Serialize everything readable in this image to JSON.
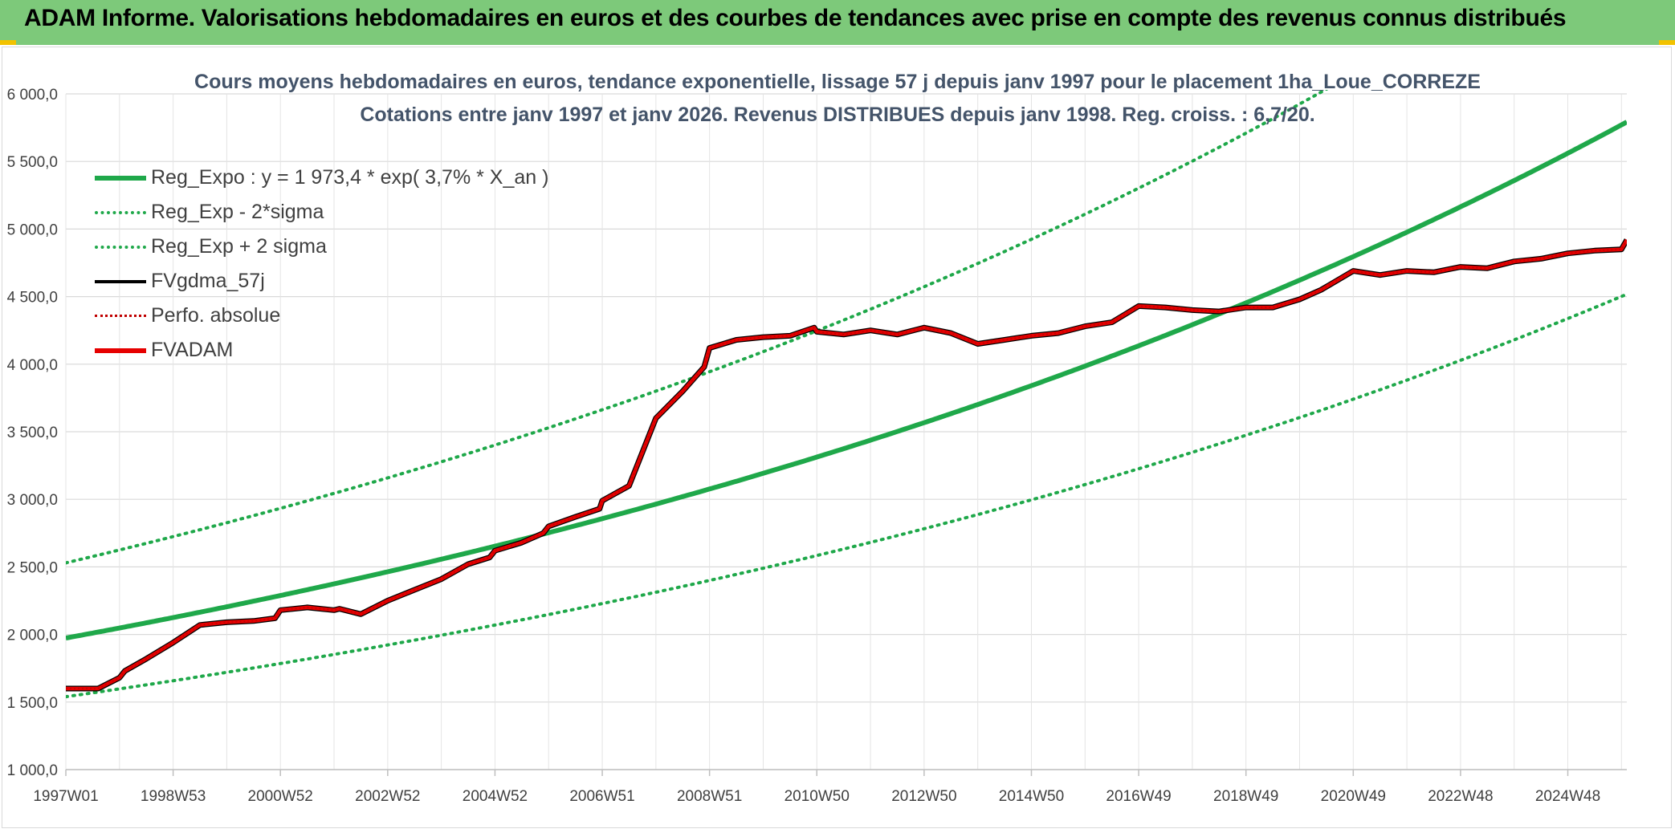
{
  "banner": {
    "title": "ADAM Informe. Valorisations hebdomadaires en euros et des courbes de tendances avec prise en compte des revenus connus distribués"
  },
  "colors": {
    "banner_bg": "#7dc97a",
    "reg_expo": "#1fa84a",
    "sigma": "#1fa84a",
    "fvgdma": "#000000",
    "perfo": "#c00000",
    "fvadam": "#e60000",
    "grid": "#d9d9d9",
    "text": "#404040"
  },
  "chart_data": {
    "type": "line",
    "title": "Cours moyens hebdomadaires en euros, tendance exponentielle, lissage 57 j depuis janv 1997 pour le placement 1ha_Loue_CORREZE",
    "subtitle": "Cotations entre janv 1997 et janv 2026. Revenus DISTRIBUES depuis janv 1998. Reg. croiss. : 6,7/20.",
    "xlabel": "",
    "ylabel": "",
    "xlim": [
      1997.0,
      2026.1
    ],
    "ylim": [
      1000,
      6000
    ],
    "y_ticks": [
      1000,
      1500,
      2000,
      2500,
      3000,
      3500,
      4000,
      4500,
      5000,
      5500,
      6000
    ],
    "y_tick_labels": [
      "1 000,0",
      "1 500,0",
      "2 000,0",
      "2 500,0",
      "3 000,0",
      "3 500,0",
      "4 000,0",
      "4 500,0",
      "5 000,0",
      "5 500,0",
      "6 000,0"
    ],
    "x_tick_labels": [
      "1997W01",
      "1998W53",
      "2000W52",
      "2002W52",
      "2004W52",
      "2006W51",
      "2008W51",
      "2010W50",
      "2012W50",
      "2014W50",
      "2016W49",
      "2018W49",
      "2020W49",
      "2022W48",
      "2024W48"
    ],
    "x_tick_positions": [
      1997.0,
      1999.0,
      2001.0,
      2003.0,
      2005.0,
      2007.0,
      2009.0,
      2011.0,
      2013.0,
      2015.0,
      2017.0,
      2019.0,
      2021.0,
      2023.0,
      2025.0
    ],
    "legend_position": "top-left",
    "grid": true,
    "regression": {
      "a": 1973.4,
      "rate": 0.037,
      "start_year": 1997.0,
      "end_year": 2026.1,
      "sigma_factor": 1.282
    },
    "series": [
      {
        "name": "Reg_Expo : y = 1 973,4 * exp( 3,7% *  X_an )",
        "style": "solid-thick",
        "kind": "reg"
      },
      {
        "name": "Reg_Exp - 2*sigma",
        "style": "dotted",
        "kind": "reg_low"
      },
      {
        "name": "Reg_Exp + 2 sigma",
        "style": "dotted",
        "kind": "reg_high"
      },
      {
        "name": "FVgdma_57j",
        "style": "solid",
        "kind": "data",
        "x": [
          1997.0,
          1997.6,
          1998.0,
          1998.1,
          1998.5,
          1999.0,
          1999.5,
          2000.0,
          2000.5,
          2000.9,
          2001.0,
          2001.5,
          2002.0,
          2002.1,
          2002.5,
          2003.0,
          2003.5,
          2004.0,
          2004.5,
          2004.9,
          2005.0,
          2005.5,
          2005.9,
          2006.0,
          2006.5,
          2006.95,
          2007.0,
          2007.5,
          2008.0,
          2008.5,
          2008.9,
          2009.0,
          2009.5,
          2010.0,
          2010.5,
          2010.95,
          2011.0,
          2011.5,
          2012.0,
          2012.5,
          2013.0,
          2013.5,
          2014.0,
          2014.5,
          2015.0,
          2015.5,
          2016.0,
          2016.5,
          2017.0,
          2017.5,
          2018.0,
          2018.5,
          2019.0,
          2019.5,
          2020.0,
          2020.4,
          2021.0,
          2021.5,
          2022.0,
          2022.5,
          2023.0,
          2023.5,
          2024.0,
          2024.5,
          2025.0,
          2025.5,
          2026.0,
          2026.1
        ],
        "y": [
          1600,
          1600,
          1680,
          1730,
          1820,
          1940,
          2070,
          2090,
          2100,
          2120,
          2180,
          2200,
          2180,
          2190,
          2150,
          2250,
          2330,
          2410,
          2520,
          2570,
          2620,
          2680,
          2750,
          2800,
          2870,
          2930,
          2990,
          3100,
          3600,
          3800,
          3980,
          4120,
          4180,
          4200,
          4210,
          4270,
          4240,
          4220,
          4250,
          4220,
          4270,
          4230,
          4150,
          4180,
          4210,
          4230,
          4280,
          4310,
          4430,
          4420,
          4400,
          4390,
          4420,
          4420,
          4480,
          4550,
          4690,
          4660,
          4690,
          4680,
          4720,
          4710,
          4760,
          4780,
          4820,
          4840,
          4850,
          4920
        ]
      },
      {
        "name": "Perfo. absolue",
        "style": "dotted",
        "kind": "perfo"
      },
      {
        "name": "FVADAM",
        "style": "solid-thick",
        "kind": "data_main"
      }
    ]
  }
}
